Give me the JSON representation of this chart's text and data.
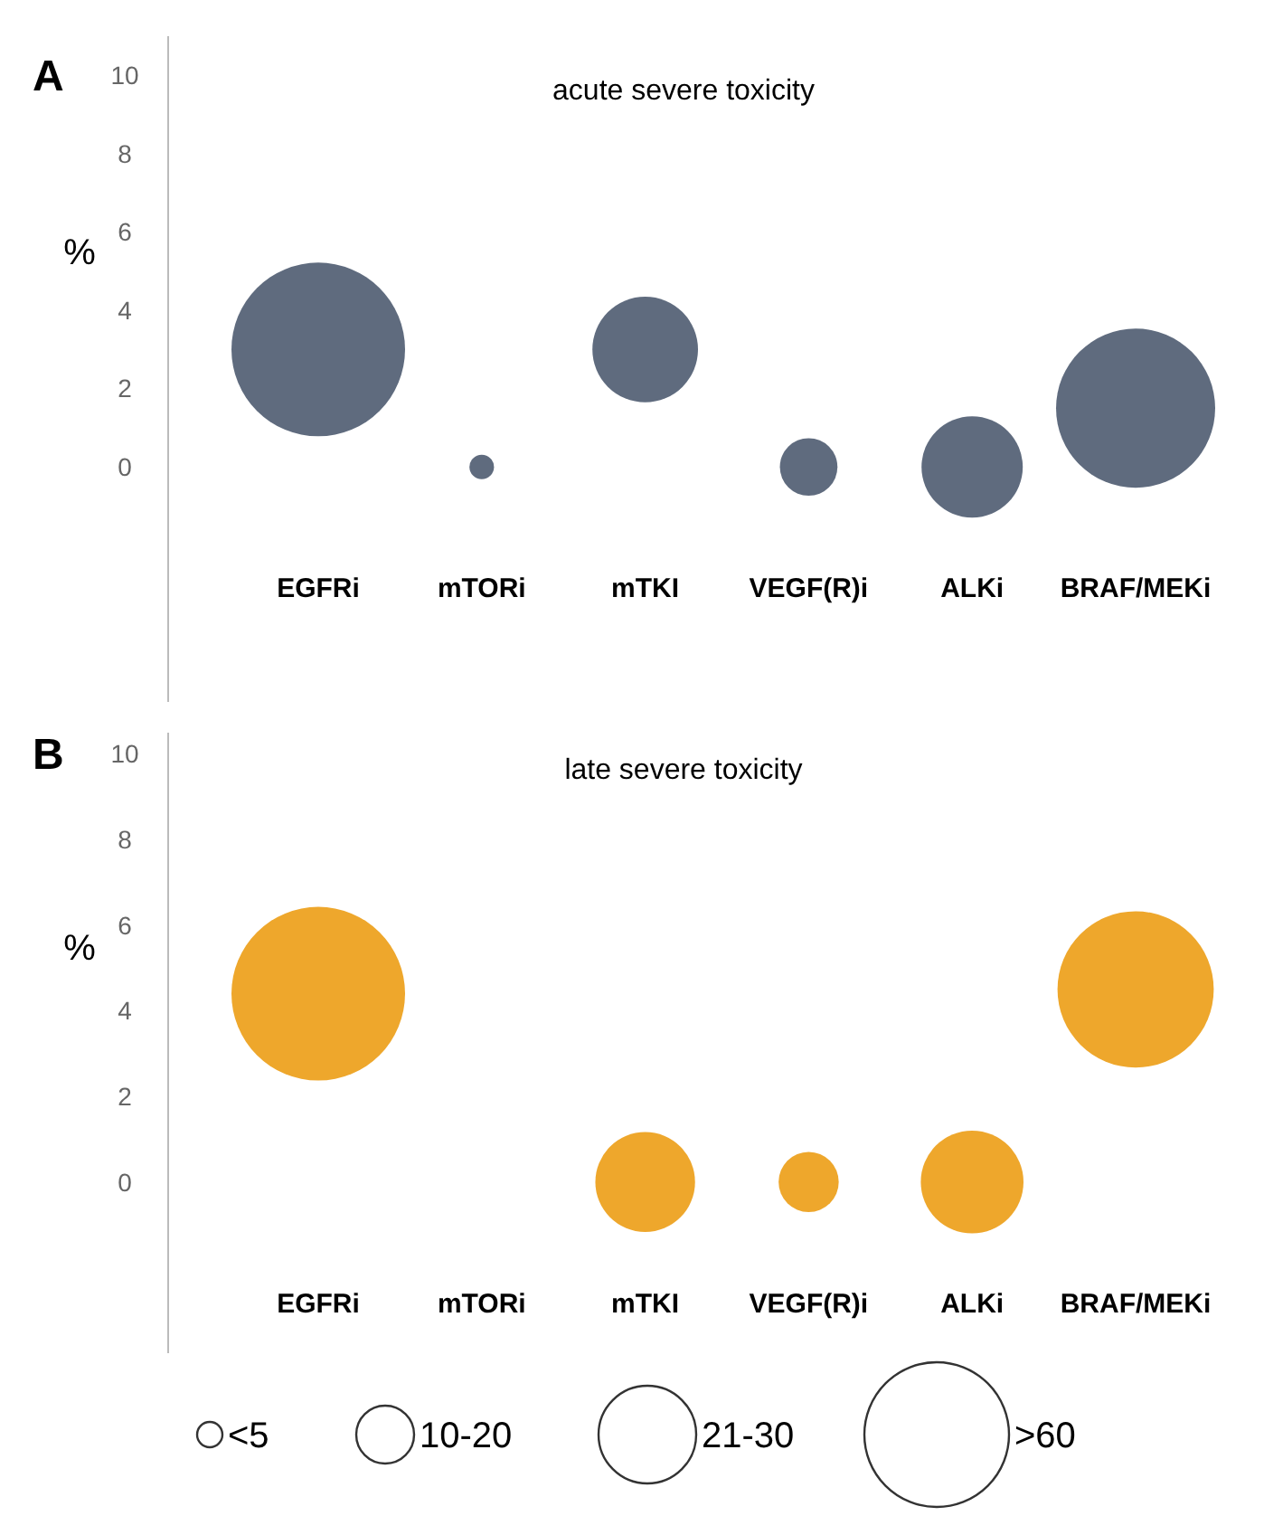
{
  "chart_data": [
    {
      "type": "bubble",
      "title": "acute severe toxicity",
      "ylabel": "%",
      "annotations": [
        "A"
      ],
      "categories": [
        "EGFRi",
        "mTORi",
        "mTKI",
        "VEGF(R)i",
        "ALKi",
        "BRAF/MEKi"
      ],
      "series": [
        {
          "color": "#5f6b7e",
          "values": [
            3.0,
            0,
            3.0,
            0,
            0,
            1.5
          ],
          "sizes": [
            1,
            0.02,
            0.37,
            0.11,
            0.34,
            0.84
          ]
        }
      ],
      "ylim": [
        -6,
        11
      ],
      "yticks": [
        0,
        2,
        4,
        6,
        8,
        10
      ],
      "grid": false
    },
    {
      "type": "bubble",
      "title": "late severe toxicity",
      "ylabel": "%",
      "annotations": [
        "B",
        "<5",
        "10-20",
        "21-30",
        ">60"
      ],
      "categories": [
        "EGFRi",
        "mTORi",
        "mTKI",
        "VEGF(R)i",
        "ALKi",
        "BRAF/MEKi"
      ],
      "series": [
        {
          "color": "#eea72c",
          "values": [
            4.4,
            null,
            0,
            0,
            0,
            4.5
          ],
          "sizes": [
            1,
            null,
            0.33,
            0.12,
            0.35,
            0.81
          ]
        }
      ],
      "ylim": [
        -4,
        10.5
      ],
      "yticks": [
        0,
        2,
        4,
        6,
        8,
        10
      ],
      "grid": false
    }
  ]
}
